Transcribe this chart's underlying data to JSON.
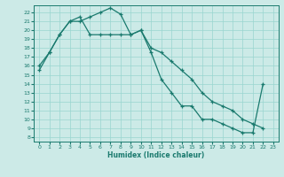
{
  "xlabel": "Humidex (Indice chaleur)",
  "bg_color": "#cceae7",
  "grid_color": "#99d5d0",
  "line_color": "#1a7a6e",
  "xlim": [
    -0.5,
    23.5
  ],
  "ylim": [
    7.5,
    22.8
  ],
  "xticks": [
    0,
    1,
    2,
    3,
    4,
    5,
    6,
    7,
    8,
    9,
    10,
    11,
    12,
    13,
    14,
    15,
    16,
    17,
    18,
    19,
    20,
    21,
    22,
    23
  ],
  "yticks": [
    8,
    9,
    10,
    11,
    12,
    13,
    14,
    15,
    16,
    17,
    18,
    19,
    20,
    21,
    22
  ],
  "line1_x": [
    0,
    1,
    2,
    3,
    4,
    5,
    6,
    7,
    8,
    9,
    10,
    11,
    12,
    13,
    14,
    15,
    16,
    17,
    18,
    19,
    20,
    21,
    22
  ],
  "line1_y": [
    15.5,
    17.5,
    19.5,
    21.0,
    21.0,
    21.5,
    22.0,
    22.5,
    21.8,
    19.5,
    20.0,
    17.5,
    14.5,
    13.0,
    11.5,
    11.5,
    10.0,
    10.0,
    9.5,
    9.0,
    8.5,
    8.5,
    14.0
  ],
  "line2_x": [
    0,
    1,
    2,
    3,
    4,
    5,
    6,
    7,
    8,
    9,
    10,
    11,
    12,
    13,
    14,
    15,
    16,
    17,
    18,
    19,
    20,
    21,
    22
  ],
  "line2_y": [
    16.0,
    17.5,
    19.5,
    21.0,
    21.5,
    19.5,
    19.5,
    19.5,
    19.5,
    19.5,
    20.0,
    18.0,
    17.5,
    16.5,
    15.5,
    14.5,
    13.0,
    12.0,
    11.5,
    11.0,
    10.0,
    9.5,
    9.0
  ]
}
